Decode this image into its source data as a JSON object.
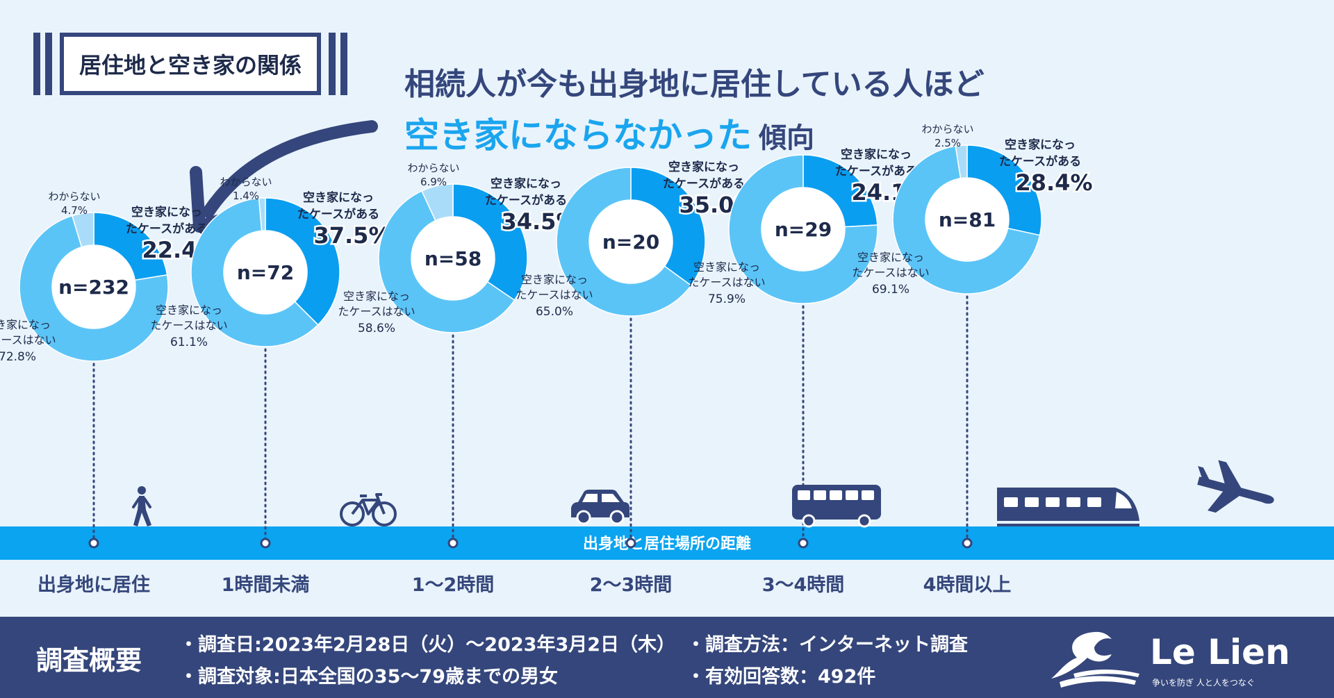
{
  "badge": {
    "label": "居住地と空き家の関係"
  },
  "headline": {
    "line1": "相続人が今も出身地に居住している人ほど",
    "accent": "空き家にならなかった",
    "rest": "傾向"
  },
  "axis": {
    "label": "出身地と居住場所の距離"
  },
  "colors": {
    "has": "#0a9ef0",
    "not": "#5bc4f7",
    "unknown": "#a9dcf9",
    "navy": "#34467b",
    "axis_band": "#0aa4f0"
  },
  "icons": [
    "walking-person-icon",
    "bicycle-icon",
    "car-icon",
    "bus-icon",
    "train-icon",
    "airplane-icon"
  ],
  "chart_data": {
    "type": "pie",
    "category_labels": {
      "has": "空き家になったケースがある",
      "not": "空き家になったケースはない",
      "unknown": "わからない"
    },
    "groups": [
      {
        "distance": "出身地に居住",
        "n": "n=232",
        "has": 22.4,
        "not": 72.8,
        "unknown": 4.7
      },
      {
        "distance": "1時間未満",
        "n": "n=72",
        "has": 37.5,
        "not": 61.1,
        "unknown": 1.4
      },
      {
        "distance": "1～2時間",
        "n": "n=58",
        "has": 34.5,
        "not": 58.6,
        "unknown": 6.9
      },
      {
        "distance": "2～3時間",
        "n": "n=20",
        "has": 35.0,
        "not": 65.0,
        "unknown": null
      },
      {
        "distance": "3～4時間",
        "n": "n=29",
        "has": 24.1,
        "not": 75.9,
        "unknown": null
      },
      {
        "distance": "4時間以上",
        "n": "n=81",
        "has": 28.4,
        "not": 69.1,
        "unknown": 2.5
      }
    ]
  },
  "footer": {
    "title": "調査概要",
    "items": {
      "date": "・調査日:2023年2月28日（火）～2023年3月2日（木）",
      "target": "・調査対象:日本全国の35～79歳までの男女",
      "method": "・調査方法：インターネット調査",
      "responses": "・有効回答数：492件"
    },
    "logo": "Le Lien",
    "tagline": "争いを防ぎ 人と人をつなぐ"
  }
}
